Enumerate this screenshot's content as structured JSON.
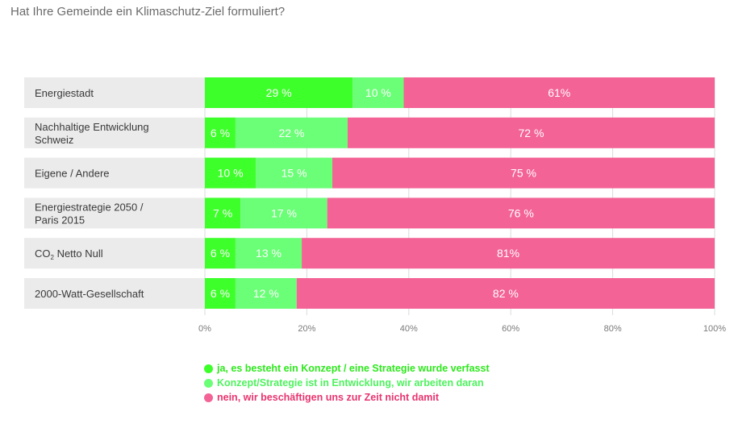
{
  "chart_data": {
    "type": "bar",
    "orientation": "horizontal",
    "stacked": true,
    "title": "Hat Ihre Gemeinde ein Klimaschutz-Ziel formuliert?",
    "xlabel": "",
    "ylabel": "",
    "xlim": [
      0,
      100
    ],
    "x_ticks": [
      "0%",
      "20%",
      "40%",
      "60%",
      "80%",
      "100%"
    ],
    "x_tick_values": [
      0,
      20,
      40,
      60,
      80,
      100
    ],
    "grid": true,
    "legend_position": "bottom",
    "categories": [
      {
        "label_lines": [
          "Energiestadt"
        ]
      },
      {
        "label_lines": [
          "Nachhaltige Entwicklung",
          "Schweiz"
        ]
      },
      {
        "label_lines": [
          "Eigene / Andere"
        ]
      },
      {
        "label_lines": [
          "Energiestrategie 2050 /",
          "Paris 2015"
        ]
      },
      {
        "label_lines": [
          "CO",
          "2",
          " Netto Null"
        ],
        "subscript": true
      },
      {
        "label_lines": [
          "2000-Watt-Gesellschaft"
        ]
      }
    ],
    "series": [
      {
        "name": "ja, es besteht ein Konzept / eine Strategie wurde verfasst",
        "color": "#3dff2a",
        "values": [
          29,
          6,
          10,
          7,
          6,
          6
        ],
        "labels": [
          "29 %",
          "6 %",
          "10 %",
          "7 %",
          "6 %",
          "6 %"
        ]
      },
      {
        "name": "Konzept/Strategie ist in Entwicklung, wir arbeiten daran",
        "color": "#6bff77",
        "values": [
          10,
          22,
          15,
          17,
          13,
          12
        ],
        "labels": [
          "10 %",
          "22 %",
          "15 %",
          "17 %",
          "13 %",
          "12 %"
        ]
      },
      {
        "name": "nein, wir beschäftigen uns zur Zeit nicht damit",
        "color": "#f46396",
        "values": [
          61,
          72,
          75,
          76,
          81,
          82
        ],
        "labels": [
          "61%",
          "72 %",
          "75 %",
          "76 %",
          "81%",
          "82 %"
        ]
      }
    ],
    "legend_text_colors": [
      "#2de81c",
      "#4ef25e",
      "#e8346f"
    ]
  }
}
